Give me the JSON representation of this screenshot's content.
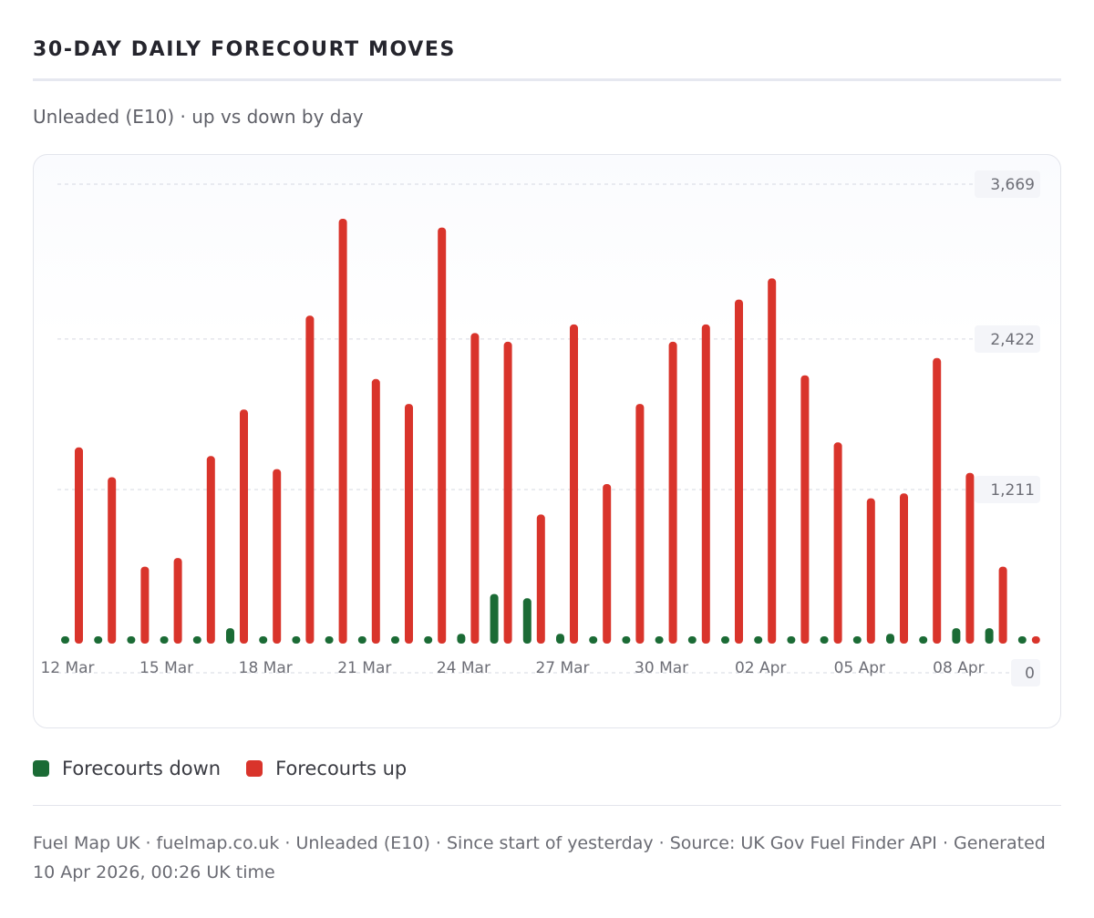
{
  "header": {
    "title": "30-DAY DAILY FORECOURT MOVES",
    "subtitle": "Unleaded (E10) · up vs down by day"
  },
  "legend": {
    "down_label": "Forecourts down",
    "up_label": "Forecourts up"
  },
  "footer": {
    "line1": "Fuel Map UK · fuelmap.co.uk · Unleaded (E10) · Since start of yesterday · Source: UK Gov Fuel Finder API · Generated",
    "line2": "10 Apr 2026, 00:26 UK time"
  },
  "colors": {
    "up": "#d9342b",
    "down": "#1b6b35",
    "gridline": "#d6d9e2"
  },
  "chart_data": {
    "type": "bar",
    "categories": [
      "12 Mar",
      "13 Mar",
      "14 Mar",
      "15 Mar",
      "16 Mar",
      "17 Mar",
      "18 Mar",
      "19 Mar",
      "20 Mar",
      "21 Mar",
      "22 Mar",
      "23 Mar",
      "24 Mar",
      "25 Mar",
      "26 Mar",
      "27 Mar",
      "28 Mar",
      "29 Mar",
      "30 Mar",
      "31 Mar",
      "01 Apr",
      "02 Apr",
      "03 Apr",
      "04 Apr",
      "05 Apr",
      "06 Apr",
      "07 Apr",
      "08 Apr",
      "09 Apr",
      "10 Apr"
    ],
    "tick_labels": [
      "12 Mar",
      "15 Mar",
      "18 Mar",
      "21 Mar",
      "24 Mar",
      "27 Mar",
      "30 Mar",
      "02 Apr",
      "05 Apr",
      "08 Apr"
    ],
    "series": [
      {
        "name": "Forecourts down",
        "color": "#1b6b35",
        "values": [
          10,
          10,
          10,
          10,
          10,
          95,
          10,
          10,
          10,
          10,
          10,
          10,
          50,
          370,
          335,
          50,
          10,
          10,
          10,
          10,
          10,
          10,
          10,
          10,
          10,
          50,
          10,
          95,
          95,
          0
        ]
      },
      {
        "name": "Forecourts up",
        "color": "#d9342b",
        "values": [
          1550,
          1310,
          590,
          660,
          1480,
          1855,
          1375,
          2610,
          3390,
          2100,
          1900,
          3320,
          2470,
          2400,
          1010,
          2540,
          1255,
          1900,
          2400,
          2540,
          2740,
          2910,
          2130,
          1590,
          1140,
          1180,
          2270,
          1345,
          590,
          20
        ]
      }
    ],
    "y_ticks": [
      "3,669",
      "2,422",
      "1,211",
      "0"
    ],
    "y_tick_values": [
      3669,
      2422,
      1211,
      0
    ],
    "ylim": [
      0,
      3669
    ],
    "grid": true,
    "legend_position": "bottom-left"
  }
}
